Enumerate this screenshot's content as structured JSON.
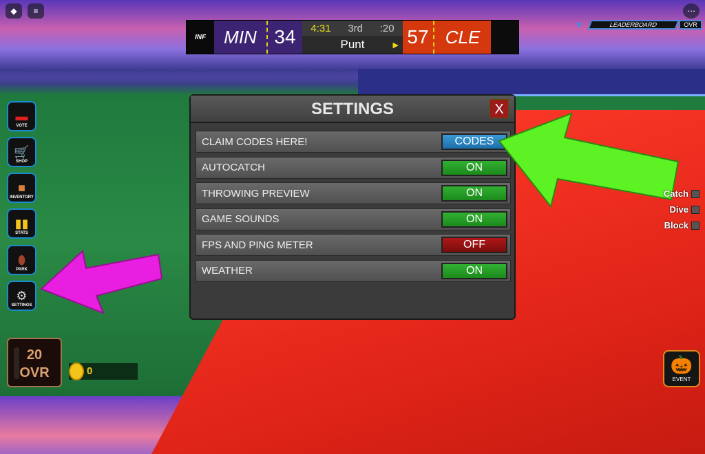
{
  "scoreboard": {
    "logo": "INF",
    "home_team": "MIN",
    "home_score": "34",
    "clock": "4:31",
    "quarter": "3rd",
    "play_clock": ":20",
    "play": "Punt",
    "away_score": "57",
    "away_team": "CLE"
  },
  "topright": {
    "leaderboard": "LEADERBOARD",
    "ovr": "OVR"
  },
  "sidebar": {
    "items": [
      {
        "label": "VOTE",
        "icon": "ballot-box-icon"
      },
      {
        "label": "SHOP",
        "icon": "cart-icon"
      },
      {
        "label": "INVENTORY",
        "icon": "box-icon"
      },
      {
        "label": "STATS",
        "icon": "bar-chart-icon"
      },
      {
        "label": "PARK",
        "icon": "football-icon"
      },
      {
        "label": "SETTINGS",
        "icon": "gear-icon"
      }
    ]
  },
  "settings": {
    "title": "SETTINGS",
    "close": "X",
    "rows": [
      {
        "label": "CLAIM CODES HERE!",
        "button": "CODES",
        "state": "codes"
      },
      {
        "label": "AUTOCATCH",
        "button": "ON",
        "state": "on"
      },
      {
        "label": "THROWING PREVIEW",
        "button": "ON",
        "state": "on"
      },
      {
        "label": "GAME SOUNDS",
        "button": "ON",
        "state": "on"
      },
      {
        "label": "FPS AND PING METER",
        "button": "OFF",
        "state": "off"
      },
      {
        "label": "WEATHER",
        "button": "ON",
        "state": "on"
      }
    ]
  },
  "controls": [
    {
      "label": "Catch"
    },
    {
      "label": "Dive"
    },
    {
      "label": "Block"
    }
  ],
  "player": {
    "ovr_value": "20",
    "ovr_label": "OVR",
    "coins": "0"
  },
  "event": {
    "label": "EVENT"
  },
  "colors": {
    "on": "#1c8a1c",
    "off": "#9c1b1b",
    "codes": "#2a86c4",
    "arrow_green": "#5cf224",
    "arrow_magenta": "#e81ee0"
  }
}
